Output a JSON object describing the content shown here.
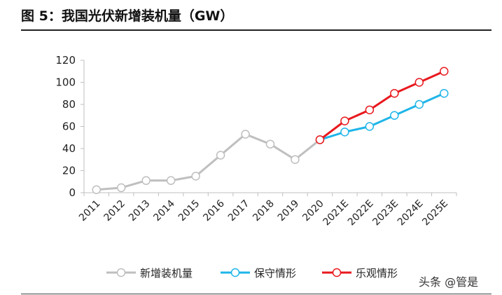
{
  "header": {
    "title": "图 5：我国光伏新增装机量（GW）"
  },
  "watermark": "头条 @管是",
  "chart_data": {
    "type": "line",
    "categories": [
      "2011",
      "2012",
      "2013",
      "2014",
      "2015",
      "2016",
      "2017",
      "2018",
      "2019",
      "2020",
      "2021E",
      "2022E",
      "2023E",
      "2024E",
      "2025E"
    ],
    "ylim": [
      0,
      120
    ],
    "yticks": [
      0,
      20,
      40,
      60,
      80,
      100,
      120
    ],
    "grid": false,
    "legend_position": "bottom",
    "series": [
      {
        "name": "新增装机量",
        "color": "#bfbfbf",
        "values": [
          2.7,
          4.5,
          11,
          11,
          15,
          34,
          53,
          44,
          30,
          48,
          null,
          null,
          null,
          null,
          null
        ]
      },
      {
        "name": "保守情形",
        "color": "#1fb5e8",
        "values": [
          null,
          null,
          null,
          null,
          null,
          null,
          null,
          null,
          null,
          48,
          55,
          60,
          70,
          80,
          90
        ]
      },
      {
        "name": "乐观情形",
        "color": "#e8191e",
        "values": [
          null,
          null,
          null,
          null,
          null,
          null,
          null,
          null,
          null,
          48,
          65,
          75,
          90,
          100,
          110
        ]
      }
    ]
  }
}
